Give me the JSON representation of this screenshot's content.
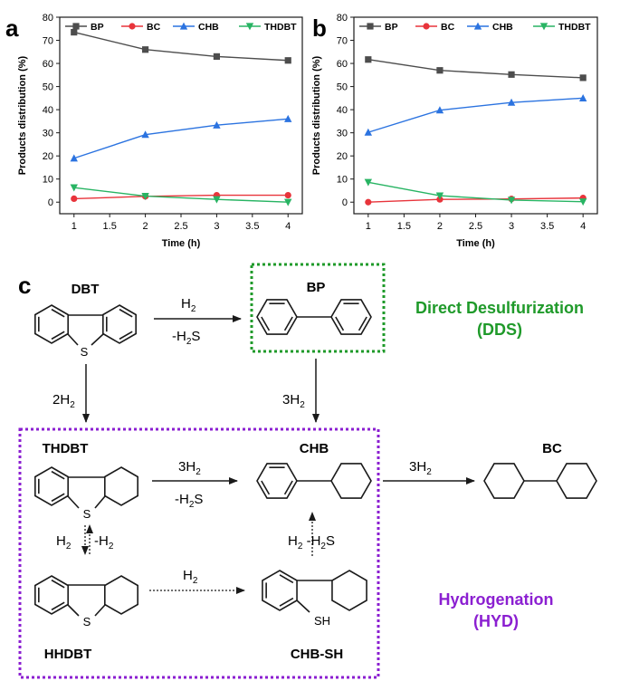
{
  "chart_data": [
    {
      "type": "line",
      "panel": "a",
      "xlabel": "Time (h)",
      "ylabel": "Products distribution (%)",
      "xlim": [
        0.8,
        4.2
      ],
      "ylim": [
        -5,
        80
      ],
      "xticks": [
        "1",
        "1.5",
        "2",
        "2.5",
        "3",
        "3.5",
        "4"
      ],
      "yticks": [
        "0",
        "10",
        "20",
        "30",
        "40",
        "50",
        "60",
        "70",
        "80"
      ],
      "legend_position": "top",
      "x": [
        1,
        2,
        3,
        4
      ],
      "series": [
        {
          "name": "BP",
          "color": "#4d4d4d",
          "marker": "square",
          "values": [
            73.5,
            66,
            63,
            61.3
          ]
        },
        {
          "name": "BC",
          "color": "#e8343b",
          "marker": "circle",
          "values": [
            1.5,
            2.5,
            3,
            3
          ]
        },
        {
          "name": "CHB",
          "color": "#2b73e0",
          "marker": "triangle-up",
          "values": [
            19,
            29.2,
            33.3,
            36
          ]
        },
        {
          "name": "THDBT",
          "color": "#28b463",
          "marker": "triangle-down",
          "values": [
            6.3,
            2.6,
            1.2,
            0
          ]
        }
      ]
    },
    {
      "type": "line",
      "panel": "b",
      "xlabel": "Time (h)",
      "ylabel": "Products distribution (%)",
      "xlim": [
        0.8,
        4.2
      ],
      "ylim": [
        -5,
        80
      ],
      "xticks": [
        "1",
        "1.5",
        "2",
        "2.5",
        "3",
        "3.5",
        "4"
      ],
      "yticks": [
        "0",
        "10",
        "20",
        "30",
        "40",
        "50",
        "60",
        "70",
        "80"
      ],
      "legend_position": "top",
      "x": [
        1,
        2,
        3,
        4
      ],
      "series": [
        {
          "name": "BP",
          "color": "#4d4d4d",
          "marker": "square",
          "values": [
            61.7,
            57,
            55.2,
            53.8
          ]
        },
        {
          "name": "BC",
          "color": "#e8343b",
          "marker": "circle",
          "values": [
            0,
            1.2,
            1.4,
            1.8
          ]
        },
        {
          "name": "CHB",
          "color": "#2b73e0",
          "marker": "triangle-up",
          "values": [
            30.2,
            39.8,
            43.1,
            45
          ]
        },
        {
          "name": "THDBT",
          "color": "#28b463",
          "marker": "triangle-down",
          "values": [
            8.6,
            2.8,
            0.9,
            0.2
          ]
        }
      ]
    }
  ],
  "scheme": {
    "panel_label": "c",
    "molecules": {
      "dbt": "DBT",
      "bp": "BP",
      "thdbt": "THDBT",
      "chb": "CHB",
      "bc": "BC",
      "hhdbt": "HHDBT",
      "chbsh": "CHB-SH"
    },
    "atoms": {
      "s": "S",
      "sh": "SH"
    },
    "pathways": {
      "dds_title": "Direct Desulfurization",
      "dds_abbr": "(DDS)",
      "hyd_title": "Hydrogenation",
      "hyd_abbr": "(HYD)"
    },
    "colors": {
      "dds": "#1f9a2a",
      "hyd": "#8b1fd1",
      "arrow": "#1a1a1a"
    }
  }
}
